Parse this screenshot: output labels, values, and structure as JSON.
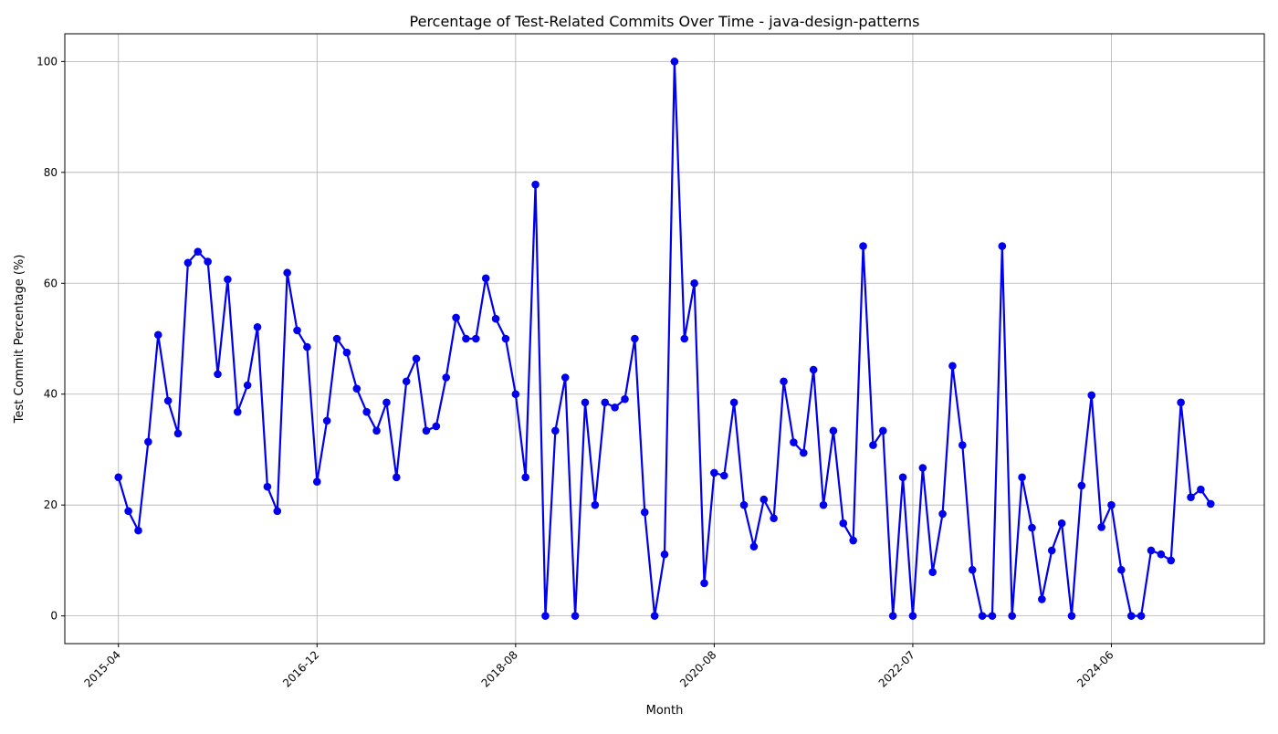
{
  "chart_data": {
    "type": "line",
    "title": "Percentage of Test-Related Commits Over Time - java-design-patterns",
    "xlabel": "Month",
    "ylabel": "Test Commit Percentage (%)",
    "x_tick_labels": [
      "2015-04",
      "2016-12",
      "2018-08",
      "2020-08",
      "2022-07",
      "2024-06"
    ],
    "y_tick_labels": [
      "0",
      "20",
      "40",
      "60",
      "80",
      "100"
    ],
    "y_ticks": [
      0,
      20,
      40,
      60,
      80,
      100
    ],
    "xlim_index": [
      -5.4,
      115.4
    ],
    "ylim": [
      -5,
      105
    ],
    "grid": true,
    "line_color": "#0000ee",
    "series": [
      {
        "values": [
          25.0,
          18.9,
          15.4,
          31.4,
          50.7,
          38.8,
          32.9,
          63.7,
          65.7,
          63.9,
          43.6,
          60.7,
          36.8,
          41.6,
          52.1,
          23.3,
          18.9,
          61.9,
          51.5,
          48.5,
          24.2,
          35.2,
          50.0,
          47.5,
          41.0,
          36.8,
          33.4,
          38.5,
          25.0,
          42.3,
          46.4,
          33.4,
          34.2,
          43.0,
          53.8,
          50.0,
          50.0,
          60.9,
          53.6,
          50.0,
          40.0,
          25.0,
          77.8,
          0.0,
          33.4,
          43.0,
          0.0,
          38.5,
          20.0,
          38.5,
          37.6,
          39.1,
          50.0,
          18.7,
          0.0,
          11.1,
          100.0,
          50.0,
          60.0,
          5.9,
          25.8,
          25.3,
          38.5,
          20.0,
          12.5,
          21.0,
          17.6,
          42.3,
          31.3,
          29.4,
          44.4,
          20.0,
          33.4,
          16.7,
          13.6,
          66.7,
          30.8,
          33.4,
          0.0,
          25.0,
          0.0,
          26.7,
          7.9,
          18.4,
          45.1,
          30.8,
          8.3,
          0.0,
          0.0,
          66.7,
          0.0,
          25.0,
          15.9,
          3.0,
          11.8,
          16.7,
          0.0,
          23.5,
          39.8,
          16.0,
          20.0,
          8.3,
          0.0,
          0.0,
          11.8,
          11.1,
          10.0,
          38.5,
          21.4,
          22.8,
          20.2
        ]
      }
    ]
  }
}
